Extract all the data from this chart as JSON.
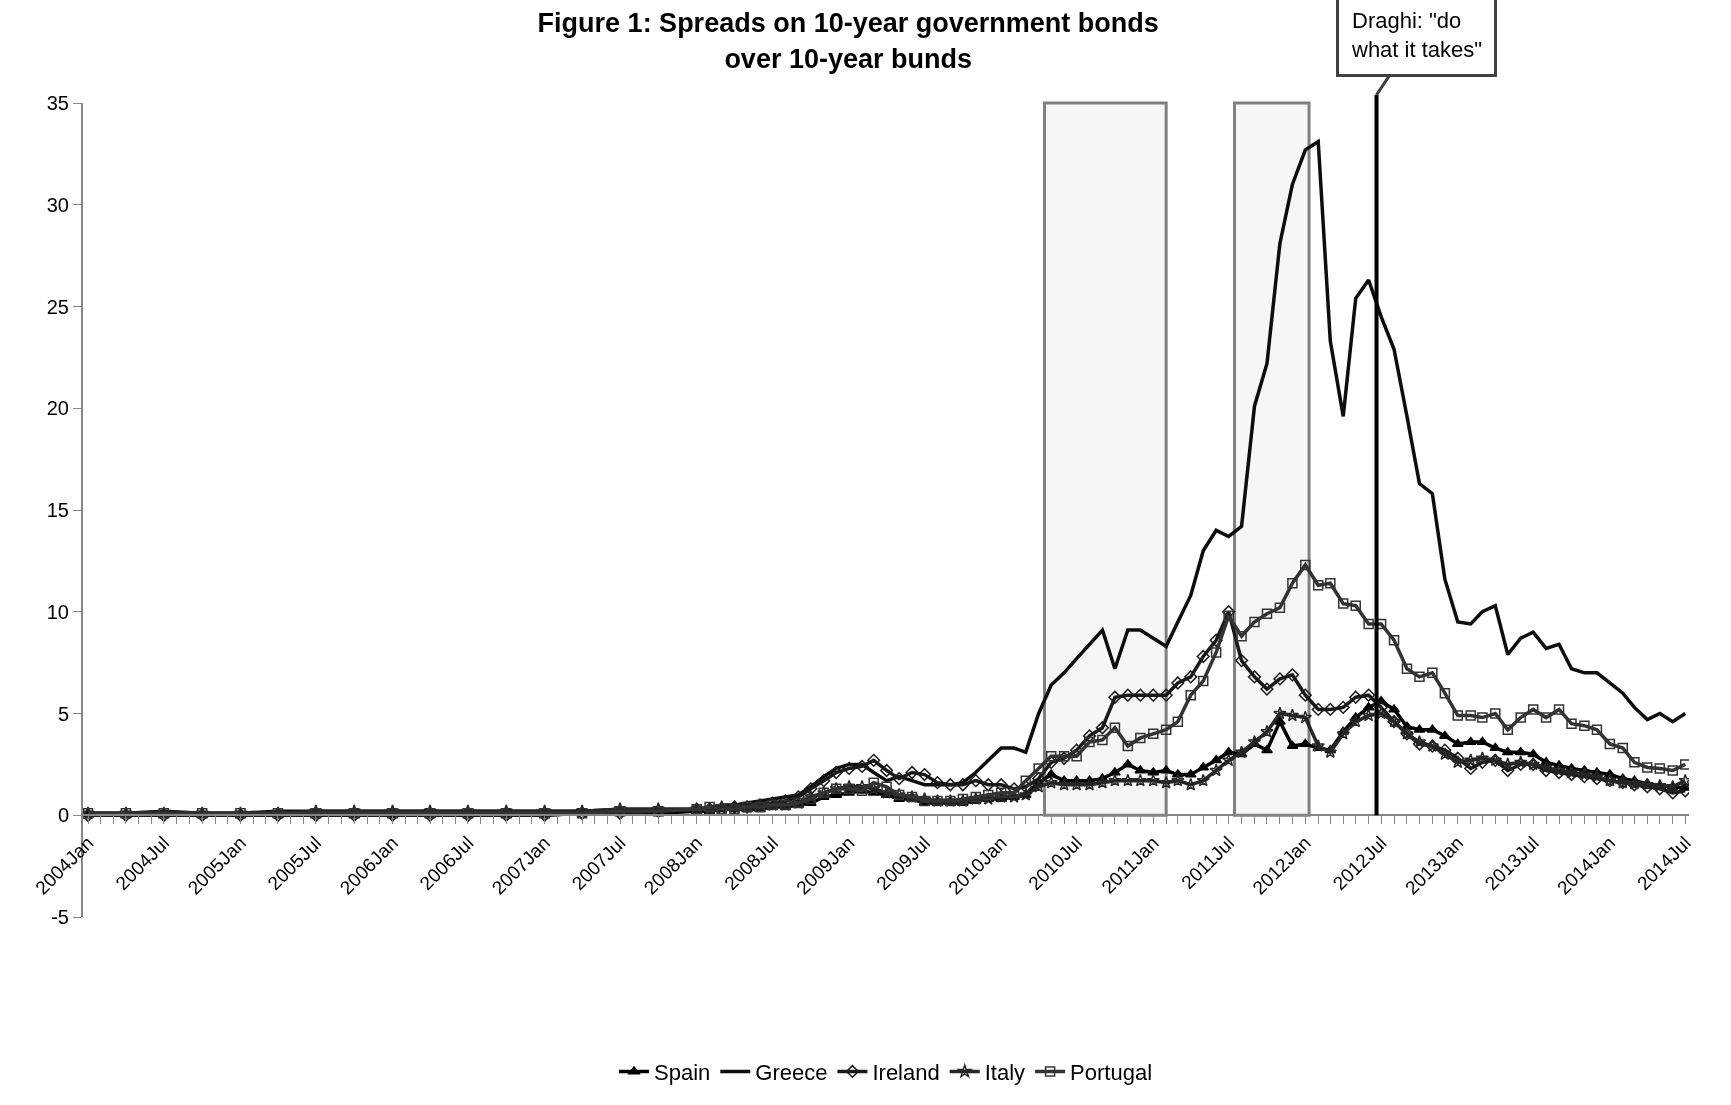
{
  "chart_data": {
    "type": "line",
    "title": "Figure 1: Spreads on 10-year government bonds\nover 10-year bunds",
    "x": [
      "2004-01",
      "2004-04",
      "2004-07",
      "2004-10",
      "2005-01",
      "2005-04",
      "2005-07",
      "2005-10",
      "2006-01",
      "2006-04",
      "2006-07",
      "2006-10",
      "2007-01",
      "2007-04",
      "2007-07",
      "2007-10",
      "2008-01",
      "2008-02",
      "2008-03",
      "2008-04",
      "2008-05",
      "2008-06",
      "2008-07",
      "2008-08",
      "2008-09",
      "2008-10",
      "2008-11",
      "2008-12",
      "2009-01",
      "2009-02",
      "2009-03",
      "2009-04",
      "2009-05",
      "2009-06",
      "2009-07",
      "2009-08",
      "2009-09",
      "2009-10",
      "2009-11",
      "2009-12",
      "2010-01",
      "2010-02",
      "2010-03",
      "2010-04",
      "2010-05",
      "2010-06",
      "2010-07",
      "2010-08",
      "2010-09",
      "2010-10",
      "2010-11",
      "2010-12",
      "2011-01",
      "2011-02",
      "2011-03",
      "2011-04",
      "2011-05",
      "2011-06",
      "2011-07",
      "2011-08",
      "2011-09",
      "2011-10",
      "2011-11",
      "2011-12",
      "2012-01",
      "2012-02",
      "2012-03",
      "2012-04",
      "2012-05",
      "2012-06",
      "2012-07",
      "2012-08",
      "2012-09",
      "2012-10",
      "2012-11",
      "2012-12",
      "2013-01",
      "2013-02",
      "2013-03",
      "2013-04",
      "2013-05",
      "2013-06",
      "2013-07",
      "2013-08",
      "2013-09",
      "2013-10",
      "2013-11",
      "2013-12",
      "2014-01",
      "2014-02",
      "2014-03",
      "2014-04",
      "2014-05",
      "2014-06",
      "2014-07"
    ],
    "series": [
      {
        "name": "Spain",
        "color": "#000000",
        "marker": "triangle",
        "values": [
          0.0,
          0.0,
          0.0,
          0.0,
          0.0,
          0.0,
          0.0,
          0.0,
          0.0,
          0.0,
          0.0,
          0.0,
          0.0,
          0.1,
          0.1,
          0.1,
          0.2,
          0.2,
          0.3,
          0.3,
          0.3,
          0.3,
          0.4,
          0.4,
          0.5,
          0.6,
          0.9,
          1.0,
          1.1,
          1.2,
          1.1,
          1.0,
          0.8,
          0.8,
          0.6,
          0.6,
          0.6,
          0.6,
          0.7,
          0.8,
          0.8,
          0.9,
          1.0,
          1.6,
          2.0,
          1.7,
          1.7,
          1.7,
          1.8,
          2.1,
          2.5,
          2.2,
          2.1,
          2.2,
          2.0,
          2.0,
          2.35,
          2.7,
          3.1,
          3.0,
          3.5,
          3.2,
          4.6,
          3.4,
          3.5,
          3.3,
          3.2,
          4.1,
          4.8,
          5.3,
          5.6,
          5.2,
          4.35,
          4.2,
          4.2,
          3.9,
          3.5,
          3.6,
          3.6,
          3.3,
          3.1,
          3.1,
          3.0,
          2.6,
          2.45,
          2.3,
          2.2,
          2.1,
          2.0,
          1.8,
          1.7,
          1.55,
          1.45,
          1.4,
          1.35
        ]
      },
      {
        "name": "Greece",
        "color": "#0d0d0d",
        "marker": "none",
        "values": [
          0.1,
          0.1,
          0.2,
          0.1,
          0.1,
          0.2,
          0.2,
          0.2,
          0.2,
          0.2,
          0.2,
          0.2,
          0.2,
          0.2,
          0.3,
          0.3,
          0.3,
          0.4,
          0.5,
          0.5,
          0.6,
          0.7,
          0.8,
          0.9,
          1.0,
          1.4,
          1.9,
          2.3,
          2.5,
          2.5,
          2.1,
          1.7,
          1.9,
          1.7,
          1.5,
          1.5,
          1.5,
          1.6,
          2.1,
          2.7,
          3.3,
          3.3,
          3.1,
          5.0,
          6.4,
          7.0,
          7.7,
          8.4,
          9.1,
          7.2,
          9.1,
          9.1,
          8.7,
          8.3,
          9.5,
          10.8,
          13.0,
          14.0,
          13.7,
          14.2,
          20.1,
          22.2,
          28.1,
          31.0,
          32.7,
          33.1,
          23.3,
          19.6,
          25.4,
          26.3,
          24.5,
          22.9,
          19.6,
          16.3,
          15.8,
          11.6,
          9.5,
          9.4,
          10.0,
          10.3,
          7.9,
          8.7,
          9.0,
          8.2,
          8.4,
          7.2,
          7.0,
          7.0,
          6.5,
          6.0,
          5.3,
          4.7,
          5.0,
          4.6,
          5.0
        ]
      },
      {
        "name": "Ireland",
        "color": "#1a1a1a",
        "marker": "diamond",
        "values": [
          0.0,
          0.0,
          0.0,
          0.0,
          0.0,
          0.0,
          0.0,
          0.0,
          0.0,
          0.0,
          0.0,
          0.0,
          0.0,
          0.1,
          0.1,
          0.2,
          0.3,
          0.3,
          0.3,
          0.4,
          0.4,
          0.5,
          0.6,
          0.7,
          0.9,
          1.3,
          1.7,
          2.1,
          2.3,
          2.4,
          2.7,
          2.2,
          1.8,
          2.1,
          2.0,
          1.6,
          1.5,
          1.5,
          1.7,
          1.5,
          1.5,
          1.3,
          1.4,
          1.8,
          2.6,
          2.8,
          3.2,
          3.9,
          4.3,
          5.8,
          5.9,
          5.9,
          5.9,
          5.9,
          6.5,
          6.8,
          7.8,
          8.6,
          10.0,
          7.6,
          6.8,
          6.2,
          6.7,
          6.9,
          5.9,
          5.2,
          5.2,
          5.3,
          5.8,
          5.9,
          5.3,
          4.6,
          4.0,
          3.5,
          3.4,
          3.2,
          2.8,
          2.3,
          2.6,
          2.7,
          2.2,
          2.5,
          2.5,
          2.2,
          2.1,
          2.0,
          1.9,
          1.8,
          1.7,
          1.6,
          1.5,
          1.4,
          1.3,
          1.1,
          1.2
        ]
      },
      {
        "name": "Italy",
        "color": "#262626",
        "marker": "star",
        "values": [
          0.1,
          0.1,
          0.1,
          0.1,
          0.1,
          0.1,
          0.2,
          0.2,
          0.2,
          0.2,
          0.2,
          0.2,
          0.2,
          0.2,
          0.3,
          0.3,
          0.3,
          0.3,
          0.4,
          0.4,
          0.4,
          0.5,
          0.5,
          0.5,
          0.6,
          0.9,
          1.1,
          1.3,
          1.4,
          1.4,
          1.3,
          1.1,
          1.0,
          0.9,
          0.8,
          0.7,
          0.7,
          0.7,
          0.8,
          0.8,
          0.9,
          0.9,
          1.0,
          1.4,
          1.6,
          1.5,
          1.5,
          1.5,
          1.6,
          1.7,
          1.7,
          1.7,
          1.7,
          1.6,
          1.7,
          1.5,
          1.7,
          2.2,
          2.7,
          3.1,
          3.6,
          4.1,
          5.0,
          4.9,
          4.8,
          3.4,
          3.1,
          4.0,
          4.6,
          4.9,
          5.0,
          4.6,
          4.0,
          3.6,
          3.4,
          3.0,
          2.6,
          2.7,
          2.8,
          2.7,
          2.5,
          2.6,
          2.5,
          2.35,
          2.2,
          2.1,
          2.0,
          1.9,
          1.7,
          1.6,
          1.55,
          1.5,
          1.45,
          1.4,
          1.7
        ]
      },
      {
        "name": "Portugal",
        "color": "#333333",
        "marker": "square",
        "values": [
          0.1,
          0.1,
          0.1,
          0.1,
          0.1,
          0.1,
          0.1,
          0.1,
          0.1,
          0.1,
          0.1,
          0.1,
          0.1,
          0.1,
          0.2,
          0.2,
          0.3,
          0.4,
          0.3,
          0.3,
          0.4,
          0.4,
          0.5,
          0.5,
          0.6,
          0.8,
          1.1,
          1.3,
          1.3,
          1.2,
          1.6,
          1.4,
          1.0,
          0.9,
          0.7,
          0.7,
          0.7,
          0.8,
          0.9,
          1.0,
          1.1,
          1.1,
          1.7,
          2.3,
          2.9,
          2.9,
          2.9,
          3.6,
          3.7,
          4.3,
          3.4,
          3.8,
          4.0,
          4.2,
          4.6,
          5.9,
          6.6,
          8.0,
          9.8,
          8.8,
          9.5,
          9.9,
          10.2,
          11.4,
          12.3,
          11.3,
          11.4,
          10.4,
          10.3,
          9.4,
          9.4,
          8.6,
          7.2,
          6.8,
          7.0,
          6.0,
          4.9,
          4.9,
          4.8,
          5.0,
          4.2,
          4.8,
          5.2,
          4.8,
          5.2,
          4.5,
          4.4,
          4.2,
          3.5,
          3.3,
          2.6,
          2.35,
          2.3,
          2.2,
          2.5
        ]
      }
    ],
    "xlim": [
      "2003-12-20",
      "2014-07-10"
    ],
    "xticks": [
      {
        "value": "2004-01",
        "label": "2004Jan"
      },
      {
        "value": "2004-07",
        "label": "2004Jul"
      },
      {
        "value": "2005-01",
        "label": "2005Jan"
      },
      {
        "value": "2005-07",
        "label": "2005Jul"
      },
      {
        "value": "2006-01",
        "label": "2006Jan"
      },
      {
        "value": "2006-07",
        "label": "2006Jul"
      },
      {
        "value": "2007-01",
        "label": "2007Jan"
      },
      {
        "value": "2007-07",
        "label": "2007Jul"
      },
      {
        "value": "2008-01",
        "label": "2008Jan"
      },
      {
        "value": "2008-07",
        "label": "2008Jul"
      },
      {
        "value": "2009-01",
        "label": "2009Jan"
      },
      {
        "value": "2009-07",
        "label": "2009Jul"
      },
      {
        "value": "2010-01",
        "label": "2010Jan"
      },
      {
        "value": "2010-07",
        "label": "2010Jul"
      },
      {
        "value": "2011-01",
        "label": "2011Jan"
      },
      {
        "value": "2011-07",
        "label": "2011Jul"
      },
      {
        "value": "2012-01",
        "label": "2012Jan"
      },
      {
        "value": "2012-07",
        "label": "2012Jul"
      },
      {
        "value": "2013-01",
        "label": "2013Jan"
      },
      {
        "value": "2013-07",
        "label": "2013Jul"
      },
      {
        "value": "2014-01",
        "label": "2014Jan"
      },
      {
        "value": "2014-07",
        "label": "2014Jul"
      }
    ],
    "ylim": [
      -5,
      35
    ],
    "yticks": [
      -5,
      0,
      5,
      10,
      15,
      20,
      25,
      30,
      35
    ],
    "bands": [
      {
        "axis": "x",
        "from": "2010-04-15",
        "to": "2011-02-01",
        "color": "#808080"
      },
      {
        "axis": "x",
        "from": "2011-07-15",
        "to": "2012-01-10",
        "color": "#808080"
      }
    ],
    "ref_lines": [
      {
        "axis": "x",
        "value": "2012-06-20",
        "label": "Draghi: \"do what it takes\"",
        "color": "#000000"
      }
    ],
    "legend": "bottom"
  }
}
